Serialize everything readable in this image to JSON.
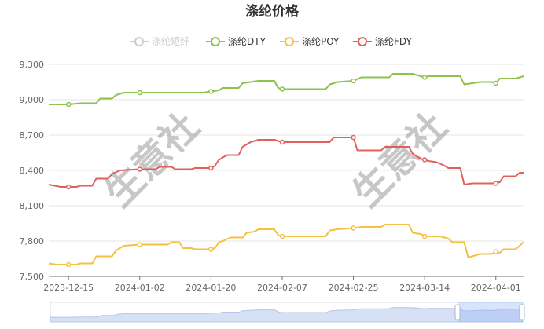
{
  "chart_data": {
    "type": "line",
    "title": "涤纶价格",
    "watermark": "生意社",
    "x_ticks": [
      "2023-12-15",
      "2024-01-02",
      "2024-01-20",
      "2024-02-07",
      "2024-02-25",
      "2024-03-14",
      "2024-04-01"
    ],
    "y_ticks": [
      "7,500",
      "7,800",
      "8,100",
      "8,400",
      "8,700",
      "9,000",
      "9,300"
    ],
    "ylim": [
      7500,
      9300
    ],
    "xlim": [
      "2023-12-10",
      "2024-04-08"
    ],
    "grid": true,
    "legend_position": "top",
    "series": [
      {
        "name": "涤纶短纤",
        "color": "#c8c8c8",
        "hidden": true,
        "points": []
      },
      {
        "name": "涤纶DTY",
        "color": "#8cc34f",
        "points": [
          [
            "2023-12-10",
            8960
          ],
          [
            "2023-12-15",
            8960
          ],
          [
            "2023-12-18",
            8970
          ],
          [
            "2023-12-22",
            8970
          ],
          [
            "2023-12-23",
            9010
          ],
          [
            "2023-12-26",
            9010
          ],
          [
            "2023-12-27",
            9040
          ],
          [
            "2023-12-29",
            9060
          ],
          [
            "2024-01-05",
            9060
          ],
          [
            "2024-01-18",
            9060
          ],
          [
            "2024-01-20",
            9070
          ],
          [
            "2024-01-22",
            9080
          ],
          [
            "2024-01-23",
            9100
          ],
          [
            "2024-01-27",
            9100
          ],
          [
            "2024-01-28",
            9140
          ],
          [
            "2024-01-30",
            9150
          ],
          [
            "2024-02-01",
            9160
          ],
          [
            "2024-02-05",
            9160
          ],
          [
            "2024-02-06",
            9100
          ],
          [
            "2024-02-07",
            9090
          ],
          [
            "2024-02-15",
            9090
          ],
          [
            "2024-02-18",
            9090
          ],
          [
            "2024-02-19",
            9130
          ],
          [
            "2024-02-21",
            9150
          ],
          [
            "2024-02-25",
            9160
          ],
          [
            "2024-02-27",
            9190
          ],
          [
            "2024-03-05",
            9190
          ],
          [
            "2024-03-06",
            9220
          ],
          [
            "2024-03-11",
            9220
          ],
          [
            "2024-03-13",
            9200
          ],
          [
            "2024-03-14",
            9190
          ],
          [
            "2024-03-15",
            9200
          ],
          [
            "2024-03-23",
            9200
          ],
          [
            "2024-03-24",
            9130
          ],
          [
            "2024-03-26",
            9140
          ],
          [
            "2024-03-28",
            9150
          ],
          [
            "2024-03-31",
            9150
          ],
          [
            "2024-04-01",
            9140
          ],
          [
            "2024-04-02",
            9180
          ],
          [
            "2024-04-06",
            9180
          ],
          [
            "2024-04-08",
            9200
          ]
        ]
      },
      {
        "name": "涤纶POY",
        "color": "#f5c142",
        "points": [
          [
            "2023-12-10",
            7610
          ],
          [
            "2023-12-12",
            7600
          ],
          [
            "2023-12-15",
            7600
          ],
          [
            "2023-12-17",
            7600
          ],
          [
            "2023-12-18",
            7610
          ],
          [
            "2023-12-21",
            7610
          ],
          [
            "2023-12-22",
            7670
          ],
          [
            "2023-12-26",
            7670
          ],
          [
            "2023-12-27",
            7720
          ],
          [
            "2023-12-29",
            7760
          ],
          [
            "2024-01-02",
            7770
          ],
          [
            "2024-01-09",
            7770
          ],
          [
            "2024-01-10",
            7790
          ],
          [
            "2024-01-12",
            7790
          ],
          [
            "2024-01-13",
            7740
          ],
          [
            "2024-01-15",
            7740
          ],
          [
            "2024-01-16",
            7730
          ],
          [
            "2024-01-20",
            7730
          ],
          [
            "2024-01-21",
            7740
          ],
          [
            "2024-01-22",
            7790
          ],
          [
            "2024-01-23",
            7800
          ],
          [
            "2024-01-25",
            7830
          ],
          [
            "2024-01-28",
            7830
          ],
          [
            "2024-01-29",
            7870
          ],
          [
            "2024-01-31",
            7880
          ],
          [
            "2024-02-01",
            7900
          ],
          [
            "2024-02-05",
            7900
          ],
          [
            "2024-02-06",
            7850
          ],
          [
            "2024-02-07",
            7840
          ],
          [
            "2024-02-18",
            7840
          ],
          [
            "2024-02-19",
            7890
          ],
          [
            "2024-02-21",
            7900
          ],
          [
            "2024-02-25",
            7910
          ],
          [
            "2024-02-27",
            7920
          ],
          [
            "2024-03-03",
            7920
          ],
          [
            "2024-03-04",
            7940
          ],
          [
            "2024-03-10",
            7940
          ],
          [
            "2024-03-11",
            7870
          ],
          [
            "2024-03-13",
            7860
          ],
          [
            "2024-03-14",
            7840
          ],
          [
            "2024-03-18",
            7840
          ],
          [
            "2024-03-19",
            7830
          ],
          [
            "2024-03-20",
            7820
          ],
          [
            "2024-03-21",
            7790
          ],
          [
            "2024-03-24",
            7790
          ],
          [
            "2024-03-25",
            7660
          ],
          [
            "2024-03-26",
            7670
          ],
          [
            "2024-03-27",
            7680
          ],
          [
            "2024-03-28",
            7690
          ],
          [
            "2024-03-31",
            7690
          ],
          [
            "2024-04-01",
            7710
          ],
          [
            "2024-04-02",
            7700
          ],
          [
            "2024-04-03",
            7730
          ],
          [
            "2024-04-06",
            7730
          ],
          [
            "2024-04-08",
            7790
          ]
        ]
      },
      {
        "name": "涤纶FDY",
        "color": "#e06060",
        "points": [
          [
            "2023-12-10",
            8280
          ],
          [
            "2023-12-13",
            8260
          ],
          [
            "2023-12-15",
            8260
          ],
          [
            "2023-12-17",
            8260
          ],
          [
            "2023-12-18",
            8270
          ],
          [
            "2023-12-21",
            8270
          ],
          [
            "2023-12-22",
            8330
          ],
          [
            "2023-12-25",
            8330
          ],
          [
            "2023-12-26",
            8370
          ],
          [
            "2023-12-28",
            8400
          ],
          [
            "2024-01-02",
            8410
          ],
          [
            "2024-01-06",
            8410
          ],
          [
            "2024-01-07",
            8430
          ],
          [
            "2024-01-10",
            8430
          ],
          [
            "2024-01-11",
            8410
          ],
          [
            "2024-01-15",
            8410
          ],
          [
            "2024-01-16",
            8420
          ],
          [
            "2024-01-20",
            8420
          ],
          [
            "2024-01-21",
            8440
          ],
          [
            "2024-01-22",
            8490
          ],
          [
            "2024-01-23",
            8510
          ],
          [
            "2024-01-24",
            8530
          ],
          [
            "2024-01-27",
            8530
          ],
          [
            "2024-01-28",
            8600
          ],
          [
            "2024-01-30",
            8640
          ],
          [
            "2024-02-01",
            8660
          ],
          [
            "2024-02-05",
            8660
          ],
          [
            "2024-02-06",
            8650
          ],
          [
            "2024-02-07",
            8640
          ],
          [
            "2024-02-19",
            8640
          ],
          [
            "2024-02-20",
            8680
          ],
          [
            "2024-02-25",
            8680
          ],
          [
            "2024-02-26",
            8570
          ],
          [
            "2024-03-03",
            8570
          ],
          [
            "2024-03-04",
            8600
          ],
          [
            "2024-03-10",
            8600
          ],
          [
            "2024-03-11",
            8540
          ],
          [
            "2024-03-13",
            8500
          ],
          [
            "2024-03-15",
            8480
          ],
          [
            "2024-03-17",
            8470
          ],
          [
            "2024-03-19",
            8440
          ],
          [
            "2024-03-20",
            8420
          ],
          [
            "2024-03-23",
            8420
          ],
          [
            "2024-03-24",
            8280
          ],
          [
            "2024-03-26",
            8290
          ],
          [
            "2024-03-28",
            8290
          ],
          [
            "2024-04-01",
            8290
          ],
          [
            "2024-04-02",
            8300
          ],
          [
            "2024-04-03",
            8350
          ],
          [
            "2024-04-06",
            8350
          ],
          [
            "2024-04-07",
            8380
          ],
          [
            "2024-04-08",
            8380
          ]
        ]
      }
    ],
    "marker_dates": [
      "2023-12-15",
      "2024-01-02",
      "2024-01-20",
      "2024-02-07",
      "2024-02-25",
      "2024-03-14",
      "2024-04-01"
    ]
  }
}
